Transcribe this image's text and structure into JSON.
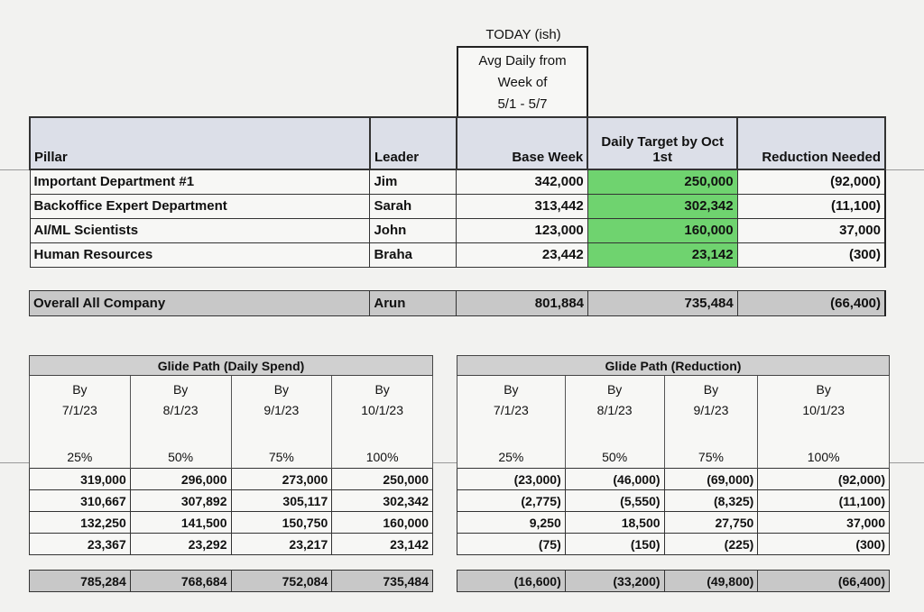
{
  "header": {
    "today_label": "TODAY (ish)",
    "avg_lines": [
      "Avg Daily from",
      "Week of",
      "5/1 - 5/7"
    ]
  },
  "main_table": {
    "columns": [
      "Pillar",
      "Leader",
      "Base Week",
      "Daily Target by Oct 1st",
      "Reduction Needed"
    ],
    "column_target_lines": [
      "Daily Target by Oct",
      "1st"
    ],
    "rows": [
      {
        "pillar": "Important Department #1",
        "leader": "Jim",
        "base": "342,000",
        "target": "250,000",
        "reduction": "(92,000)"
      },
      {
        "pillar": "Backoffice Expert Department",
        "leader": "Sarah",
        "base": "313,442",
        "target": "302,342",
        "reduction": "(11,100)"
      },
      {
        "pillar": "AI/ML Scientists",
        "leader": "John",
        "base": "123,000",
        "target": "160,000",
        "reduction": "37,000"
      },
      {
        "pillar": "Human Resources",
        "leader": "Braha",
        "base": "23,442",
        "target": "23,142",
        "reduction": "(300)"
      }
    ],
    "overall": {
      "pillar": "Overall All Company",
      "leader": "Arun",
      "base": "801,884",
      "target": "735,484",
      "reduction": "(66,400)"
    },
    "highlight_color": "#6fd36f"
  },
  "glide_spend": {
    "title": "Glide Path (Daily Spend)",
    "columns": [
      {
        "by": "By",
        "date": "7/1/23",
        "pct": "25%"
      },
      {
        "by": "By",
        "date": "8/1/23",
        "pct": "50%"
      },
      {
        "by": "By",
        "date": "9/1/23",
        "pct": "75%"
      },
      {
        "by": "By",
        "date": "10/1/23",
        "pct": "100%"
      }
    ],
    "rows": [
      [
        "319,000",
        "296,000",
        "273,000",
        "250,000"
      ],
      [
        "310,667",
        "307,892",
        "305,117",
        "302,342"
      ],
      [
        "132,250",
        "141,500",
        "150,750",
        "160,000"
      ],
      [
        "23,367",
        "23,292",
        "23,217",
        "23,142"
      ]
    ],
    "total": [
      "785,284",
      "768,684",
      "752,084",
      "735,484"
    ]
  },
  "glide_reduction": {
    "title": "Glide Path (Reduction)",
    "columns": [
      {
        "by": "By",
        "date": "7/1/23",
        "pct": "25%"
      },
      {
        "by": "By",
        "date": "8/1/23",
        "pct": "50%"
      },
      {
        "by": "By",
        "date": "9/1/23",
        "pct": "75%"
      },
      {
        "by": "By",
        "date": "10/1/23",
        "pct": "100%"
      }
    ],
    "rows": [
      [
        "(23,000)",
        "(46,000)",
        "(69,000)",
        "(92,000)"
      ],
      [
        "(2,775)",
        "(5,550)",
        "(8,325)",
        "(11,100)"
      ],
      [
        "9,250",
        "18,500",
        "27,750",
        "37,000"
      ],
      [
        "(75)",
        "(150)",
        "(225)",
        "(300)"
      ]
    ],
    "total": [
      "(16,600)",
      "(33,200)",
      "(49,800)",
      "(66,400)"
    ]
  }
}
